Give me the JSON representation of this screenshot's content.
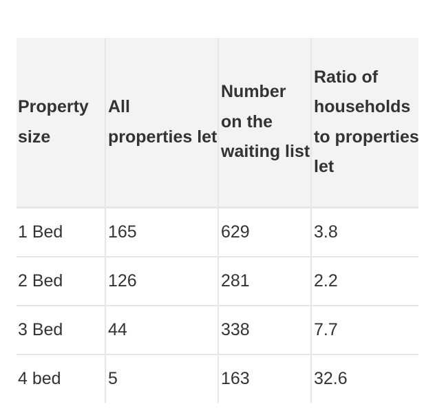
{
  "table": {
    "headers": [
      "Property size",
      "All properties let",
      "Number on the waiting list",
      "Ratio of households to properties let"
    ],
    "rows": [
      [
        "1 Bed",
        "165",
        "629",
        "3.8"
      ],
      [
        "2 Bed",
        "126",
        "281",
        "2.2"
      ],
      [
        "3 Bed",
        "44",
        "338",
        "7.7"
      ],
      [
        "4 bed",
        "5",
        "163",
        "32.6"
      ]
    ]
  }
}
